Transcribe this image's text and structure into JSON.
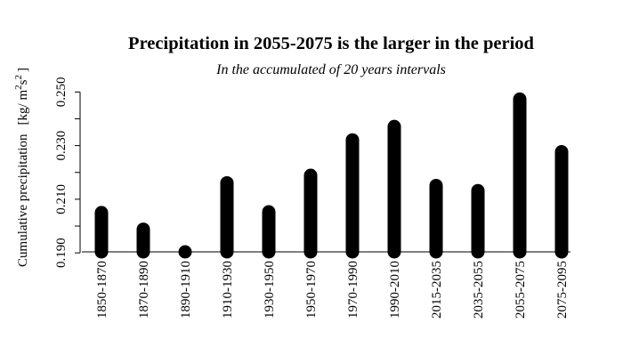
{
  "chart_data": {
    "type": "bar",
    "title": "Precipitation in 2055-2075 is the larger in the period",
    "subtitle": "In the accumulated of 20 years intervals",
    "ylabel": {
      "text": "Cumulative precipitation",
      "unit_open": "[kg/ m",
      "unit_sup": "2",
      "unit_mid": "s",
      "unit_close": "]"
    },
    "categories": [
      "1850-1870",
      "1870-1890",
      "1890-1910",
      "1910-1930",
      "1930-1950",
      "1950-1970",
      "1970-1990",
      "1990-2010",
      "2015-2035",
      "2035-2055",
      "2055-2075",
      "2075-2095"
    ],
    "values": [
      0.2075,
      0.2013,
      0.1914,
      0.2186,
      0.2078,
      0.2214,
      0.2346,
      0.2396,
      0.2176,
      0.2157,
      0.2498,
      0.2302
    ],
    "yticks": [
      0.19,
      0.21,
      0.23,
      0.25
    ],
    "ytick_labels": [
      "0.190",
      "0.210",
      "0.230",
      "0.250"
    ],
    "ylim": [
      0.187,
      0.25
    ],
    "xlabel": "",
    "grid": false,
    "bar_color": "#000000"
  }
}
